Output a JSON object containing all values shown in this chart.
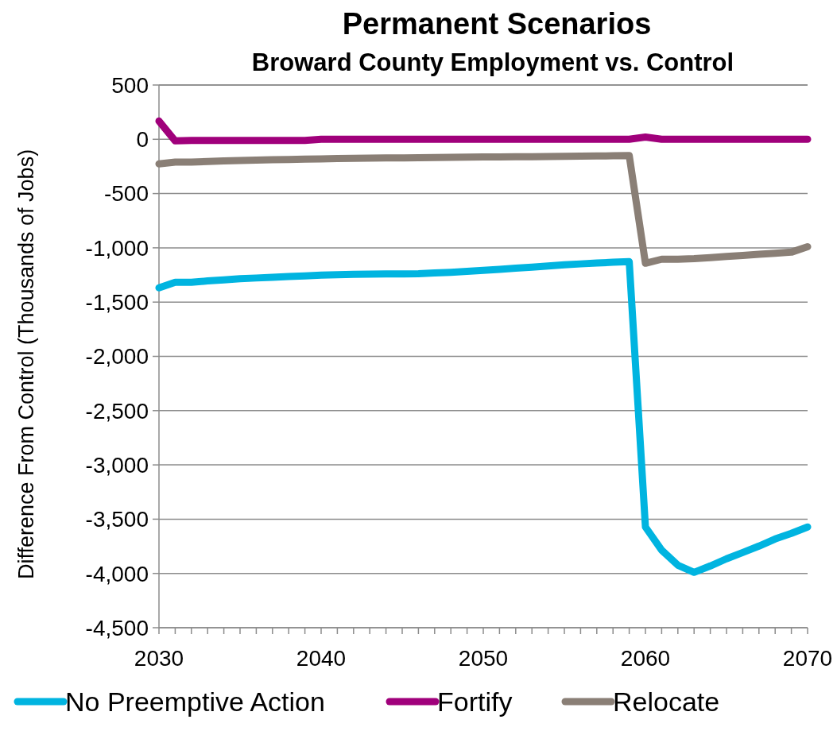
{
  "chart_data": {
    "type": "line",
    "title": "Permanent Scenarios",
    "subtitle": "Broward County Employment vs. Control",
    "ylabel": "Difference From Control (Thousands of Jobs)",
    "x": [
      2030,
      2031,
      2032,
      2033,
      2034,
      2035,
      2036,
      2037,
      2038,
      2039,
      2040,
      2041,
      2042,
      2043,
      2044,
      2045,
      2046,
      2047,
      2048,
      2049,
      2050,
      2051,
      2052,
      2053,
      2054,
      2055,
      2056,
      2057,
      2058,
      2059,
      2060,
      2061,
      2062,
      2063,
      2064,
      2065,
      2066,
      2067,
      2068,
      2069,
      2070
    ],
    "series": [
      {
        "name": "No Preemptive Action",
        "color": "#00b4e0",
        "values": [
          -1369,
          -1318,
          -1318,
          -1305,
          -1295,
          -1285,
          -1278,
          -1272,
          -1265,
          -1258,
          -1252,
          -1248,
          -1245,
          -1243,
          -1240,
          -1240,
          -1238,
          -1232,
          -1225,
          -1216,
          -1208,
          -1198,
          -1188,
          -1178,
          -1167,
          -1157,
          -1148,
          -1140,
          -1133,
          -1127,
          -3572,
          -3785,
          -3924,
          -3990,
          -3931,
          -3865,
          -3807,
          -3748,
          -3682,
          -3631,
          -3572
        ]
      },
      {
        "name": "Fortify",
        "color": "#a0007b",
        "values": [
          168,
          -15,
          -10,
          -10,
          -10,
          -10,
          -10,
          -10,
          -10,
          -10,
          0,
          0,
          0,
          0,
          0,
          0,
          0,
          0,
          0,
          0,
          0,
          0,
          0,
          0,
          0,
          0,
          0,
          0,
          0,
          0,
          20,
          0,
          0,
          0,
          0,
          0,
          0,
          0,
          0,
          0,
          0
        ]
      },
      {
        "name": "Relocate",
        "color": "#8a7f76",
        "values": [
          -227,
          -210,
          -210,
          -205,
          -200,
          -195,
          -192,
          -189,
          -186,
          -183,
          -180,
          -178,
          -176,
          -174,
          -172,
          -171,
          -170,
          -168,
          -167,
          -165,
          -163,
          -162,
          -161,
          -160,
          -159,
          -157,
          -156,
          -154,
          -152,
          -150,
          -1142,
          -1105,
          -1105,
          -1100,
          -1090,
          -1080,
          -1070,
          -1060,
          -1050,
          -1040,
          -990
        ]
      }
    ],
    "xlim": [
      2030,
      2070
    ],
    "xticks": [
      2030,
      {
        "value": 2031,
        "label": null
      },
      {
        "value": 2032,
        "label": null
      },
      {
        "value": 2033,
        "label": null
      },
      {
        "value": 2034,
        "label": null
      },
      {
        "value": 2035,
        "label": null
      },
      {
        "value": 2036,
        "label": null
      },
      {
        "value": 2037,
        "label": null
      },
      {
        "value": 2038,
        "label": null
      },
      {
        "value": 2039,
        "label": null
      },
      2040,
      {
        "value": 2041,
        "label": null
      },
      {
        "value": 2042,
        "label": null
      },
      {
        "value": 2043,
        "label": null
      },
      {
        "value": 2044,
        "label": null
      },
      {
        "value": 2045,
        "label": null
      },
      {
        "value": 2046,
        "label": null
      },
      {
        "value": 2047,
        "label": null
      },
      {
        "value": 2048,
        "label": null
      },
      {
        "value": 2049,
        "label": null
      },
      2050,
      {
        "value": 2051,
        "label": null
      },
      {
        "value": 2052,
        "label": null
      },
      {
        "value": 2053,
        "label": null
      },
      {
        "value": 2054,
        "label": null
      },
      {
        "value": 2055,
        "label": null
      },
      {
        "value": 2056,
        "label": null
      },
      {
        "value": 2057,
        "label": null
      },
      {
        "value": 2058,
        "label": null
      },
      {
        "value": 2059,
        "label": null
      },
      2060,
      {
        "value": 2061,
        "label": null
      },
      {
        "value": 2062,
        "label": null
      },
      {
        "value": 2063,
        "label": null
      },
      {
        "value": 2064,
        "label": null
      },
      {
        "value": 2065,
        "label": null
      },
      {
        "value": 2066,
        "label": null
      },
      {
        "value": 2067,
        "label": null
      },
      {
        "value": 2068,
        "label": null
      },
      {
        "value": 2069,
        "label": null
      },
      2070
    ],
    "ylim": [
      -4500,
      500
    ],
    "yticks": [
      {
        "value": 500,
        "label": "500"
      },
      {
        "value": 0,
        "label": "0"
      },
      {
        "value": -500,
        "label": "-500"
      },
      {
        "value": -1000,
        "label": "-1,000"
      },
      {
        "value": -1500,
        "label": "-1,500"
      },
      {
        "value": -2000,
        "label": "-2,000"
      },
      {
        "value": -2500,
        "label": "-2,500"
      },
      {
        "value": -3000,
        "label": "-3,000"
      },
      {
        "value": -3500,
        "label": "-3,500"
      },
      {
        "value": -4000,
        "label": "-4,000"
      },
      {
        "value": -4500,
        "label": "-4,500"
      }
    ],
    "grid": "y",
    "legend": "bottom",
    "marker": "none",
    "line_style": "solid"
  }
}
